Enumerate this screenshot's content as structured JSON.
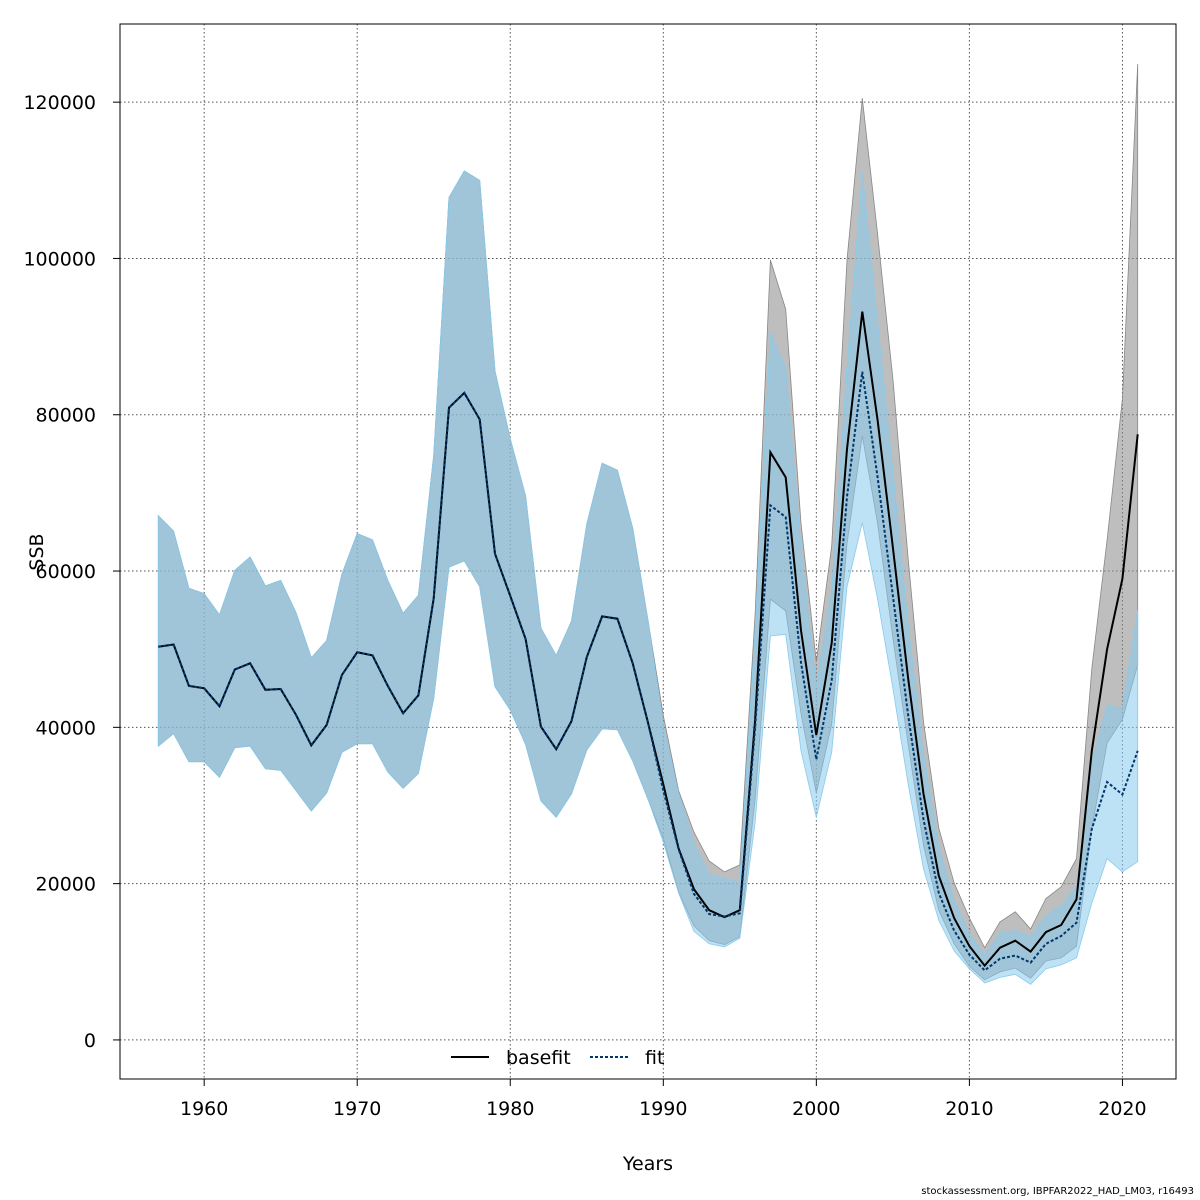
{
  "chart_data": {
    "type": "line",
    "xlabel": "Years",
    "ylabel": "SSB",
    "xlim": [
      1954.5,
      2023.5
    ],
    "ylim": [
      -5000,
      130000
    ],
    "x_ticks": [
      1960,
      1970,
      1980,
      1990,
      2000,
      2010,
      2020
    ],
    "y_ticks": [
      0,
      20000,
      40000,
      60000,
      80000,
      100000,
      120000
    ],
    "grid": true,
    "legend_position": "bottom-center",
    "x": [
      1957,
      1958,
      1959,
      1960,
      1961,
      1962,
      1963,
      1964,
      1965,
      1966,
      1967,
      1968,
      1969,
      1970,
      1971,
      1972,
      1973,
      1974,
      1975,
      1976,
      1977,
      1978,
      1979,
      1980,
      1981,
      1982,
      1983,
      1984,
      1985,
      1986,
      1987,
      1988,
      1989,
      1990,
      1991,
      1992,
      1993,
      1994,
      1995,
      1996,
      1997,
      1998,
      1999,
      2000,
      2001,
      2002,
      2003,
      2004,
      2005,
      2006,
      2007,
      2008,
      2009,
      2010,
      2011,
      2012,
      2013,
      2014,
      2015,
      2016,
      2017,
      2018,
      2019,
      2020,
      2021
    ],
    "series": [
      {
        "name": "basefit",
        "color": "#000000",
        "band_color": "#888888",
        "values": [
          50300,
          50600,
          45300,
          45000,
          42700,
          47400,
          48200,
          44800,
          44900,
          41600,
          37700,
          40300,
          46700,
          49600,
          49200,
          45300,
          41800,
          44100,
          56500,
          80900,
          82800,
          79400,
          62200,
          56800,
          51300,
          40100,
          37200,
          40800,
          49000,
          54200,
          53900,
          48200,
          40600,
          32700,
          24500,
          19300,
          16600,
          15700,
          16600,
          40900,
          75200,
          72000,
          52400,
          39000,
          50800,
          75600,
          93200,
          79300,
          63000,
          46200,
          31500,
          21000,
          15600,
          12000,
          9500,
          11800,
          12700,
          11300,
          13800,
          14700,
          18000,
          37000,
          50000,
          59000,
          77500
        ],
        "lower": [
          37600,
          39200,
          35600,
          35600,
          33600,
          37400,
          37600,
          34700,
          34500,
          31900,
          29300,
          31600,
          36800,
          37900,
          37900,
          34300,
          32200,
          34100,
          43700,
          60500,
          61300,
          58000,
          45200,
          42200,
          37800,
          30600,
          28500,
          31500,
          37100,
          39800,
          39700,
          35700,
          30800,
          25800,
          18900,
          14600,
          12700,
          12200,
          13200,
          30800,
          56400,
          54900,
          41800,
          31600,
          40400,
          63500,
          77300,
          66100,
          51400,
          37800,
          24900,
          16600,
          12300,
          9400,
          7700,
          8700,
          9200,
          7900,
          10100,
          10500,
          12000,
          27000,
          38000,
          41000,
          48000
        ],
        "upper": [
          67100,
          65100,
          57800,
          57100,
          54400,
          60100,
          61800,
          58100,
          58800,
          54700,
          48900,
          51100,
          59600,
          64800,
          64000,
          58800,
          54600,
          56900,
          74800,
          107800,
          111200,
          110000,
          85600,
          76900,
          69600,
          52700,
          49200,
          53600,
          66000,
          73800,
          72900,
          65500,
          53700,
          41500,
          31900,
          26600,
          22900,
          21500,
          22400,
          54400,
          99800,
          93500,
          66100,
          48400,
          63200,
          99800,
          120500,
          103100,
          84600,
          61500,
          40700,
          27100,
          20100,
          15600,
          11800,
          15100,
          16400,
          14200,
          18100,
          19600,
          23200,
          47500,
          64000,
          82000,
          124900
        ]
      },
      {
        "name": "fit",
        "color": "#00366b",
        "band_color": "#87cbec",
        "values": [
          50300,
          50600,
          45300,
          45000,
          42700,
          47400,
          48200,
          44800,
          44900,
          41600,
          37700,
          40300,
          46700,
          49600,
          49200,
          45300,
          41800,
          44100,
          56500,
          80900,
          82800,
          79400,
          62200,
          56800,
          51300,
          40100,
          37200,
          40800,
          49000,
          54200,
          53900,
          48200,
          40600,
          31900,
          24400,
          18700,
          16100,
          15800,
          16200,
          39900,
          68400,
          66900,
          48300,
          35900,
          46000,
          69500,
          85500,
          72000,
          56800,
          41500,
          28200,
          18800,
          14000,
          10900,
          8900,
          10400,
          10800,
          9900,
          12300,
          13300,
          15000,
          27000,
          33000,
          31400,
          37000
        ],
        "lower": [
          37600,
          39200,
          35600,
          35600,
          33600,
          37400,
          37600,
          34700,
          34500,
          31900,
          29300,
          31600,
          36800,
          37900,
          37900,
          34300,
          32200,
          34100,
          43700,
          60500,
          61300,
          58000,
          45200,
          42200,
          37800,
          30600,
          28500,
          31500,
          37100,
          39800,
          39700,
          35700,
          30800,
          25300,
          18800,
          13900,
          12300,
          11900,
          13000,
          27800,
          51700,
          51900,
          37000,
          28500,
          36800,
          58000,
          66200,
          56400,
          45000,
          32700,
          21900,
          15300,
          11400,
          9100,
          7300,
          8000,
          8400,
          7100,
          9100,
          9600,
          10500,
          17500,
          23200,
          21500,
          22800
        ],
        "upper": [
          67100,
          65100,
          57800,
          57100,
          54400,
          60100,
          61800,
          58100,
          58800,
          54700,
          48900,
          51100,
          59600,
          64800,
          64000,
          58800,
          54600,
          56900,
          74800,
          107800,
          111200,
          110000,
          85600,
          76900,
          69600,
          52700,
          49200,
          53600,
          66000,
          73800,
          72900,
          65500,
          53700,
          40200,
          31600,
          25200,
          21100,
          20700,
          20200,
          52500,
          90500,
          86000,
          63000,
          45300,
          57500,
          86000,
          111000,
          91700,
          72700,
          53000,
          36500,
          24700,
          17800,
          13600,
          10800,
          13700,
          14000,
          13200,
          15800,
          17200,
          19500,
          35500,
          42700,
          42500,
          55000
        ]
      }
    ]
  },
  "footer": "stockassessment.org, IBPFAR2022_HAD_LM03, r16493"
}
